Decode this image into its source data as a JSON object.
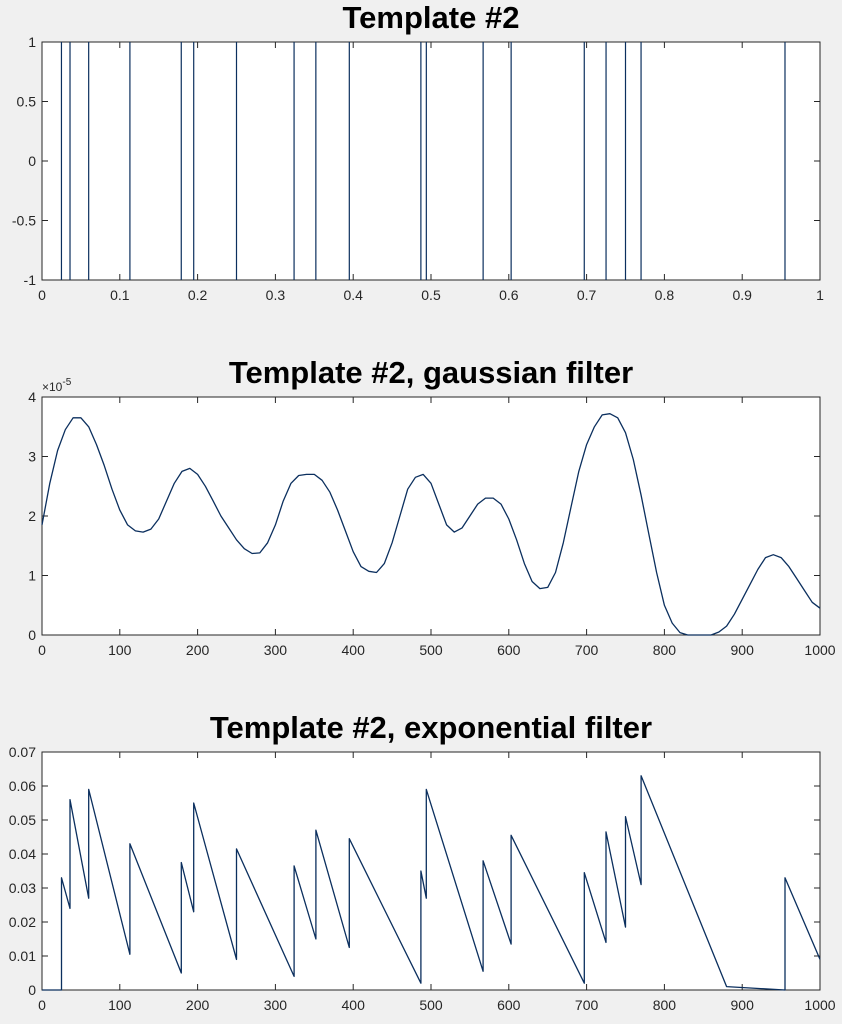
{
  "colors": {
    "figure_bg": "#f0f0f0",
    "axes_bg": "#ffffff",
    "axis": "#262626",
    "line": "#0b2f5e"
  },
  "chart_data": [
    {
      "type": "line",
      "title": "Template #2",
      "xlabel": "",
      "ylabel": "",
      "xlim": [
        0,
        1
      ],
      "ylim": [
        -1,
        1
      ],
      "xticks": [
        0,
        0.1,
        0.2,
        0.3,
        0.4,
        0.5,
        0.6,
        0.7,
        0.8,
        0.9,
        1
      ],
      "xtick_labels": [
        "0",
        "0.1",
        "0.2",
        "0.3",
        "0.4",
        "0.5",
        "0.6",
        "0.7",
        "0.8",
        "0.9",
        "1"
      ],
      "yticks": [
        -1,
        -0.5,
        0,
        0.5,
        1
      ],
      "ytick_labels": [
        "-1",
        "-0.5",
        "0",
        "0.5",
        "1"
      ],
      "grid": false,
      "spike_positions": [
        0.025,
        0.036,
        0.06,
        0.113,
        0.179,
        0.195,
        0.25,
        0.324,
        0.352,
        0.395,
        0.487,
        0.494,
        0.567,
        0.603,
        0.697,
        0.725,
        0.75,
        0.77,
        0.955
      ]
    },
    {
      "type": "line",
      "title": "Template #2, gaussian filter",
      "xlabel": "",
      "ylabel": "",
      "xlim": [
        0,
        1000
      ],
      "ylim": [
        0,
        4
      ],
      "y_exponent": "-5",
      "y_exponent_base": "×10",
      "xticks": [
        0,
        100,
        200,
        300,
        400,
        500,
        600,
        700,
        800,
        900,
        1000
      ],
      "xtick_labels": [
        "0",
        "100",
        "200",
        "300",
        "400",
        "500",
        "600",
        "700",
        "800",
        "900",
        "1000"
      ],
      "yticks": [
        0,
        1,
        2,
        3,
        4
      ],
      "ytick_labels": [
        "0",
        "1",
        "2",
        "3",
        "4"
      ],
      "grid": false,
      "x": [
        0,
        10,
        20,
        30,
        40,
        50,
        60,
        70,
        80,
        90,
        100,
        110,
        120,
        130,
        140,
        150,
        160,
        170,
        180,
        190,
        200,
        210,
        220,
        230,
        240,
        250,
        260,
        270,
        280,
        290,
        300,
        310,
        320,
        330,
        340,
        350,
        360,
        370,
        380,
        390,
        400,
        410,
        420,
        430,
        440,
        450,
        460,
        470,
        480,
        490,
        500,
        510,
        520,
        530,
        540,
        550,
        560,
        570,
        580,
        590,
        600,
        610,
        620,
        630,
        640,
        650,
        660,
        670,
        680,
        690,
        700,
        710,
        720,
        730,
        740,
        750,
        760,
        770,
        780,
        790,
        800,
        810,
        820,
        830,
        840,
        850,
        860,
        870,
        880,
        890,
        900,
        910,
        920,
        930,
        940,
        950,
        960,
        970,
        980,
        990,
        1000
      ],
      "y": [
        1.85,
        2.55,
        3.1,
        3.45,
        3.65,
        3.65,
        3.5,
        3.2,
        2.85,
        2.45,
        2.1,
        1.85,
        1.75,
        1.73,
        1.78,
        1.95,
        2.25,
        2.55,
        2.75,
        2.8,
        2.7,
        2.5,
        2.25,
        2.0,
        1.8,
        1.6,
        1.45,
        1.37,
        1.38,
        1.55,
        1.85,
        2.25,
        2.55,
        2.68,
        2.7,
        2.7,
        2.6,
        2.4,
        2.1,
        1.75,
        1.4,
        1.15,
        1.07,
        1.05,
        1.2,
        1.55,
        2.0,
        2.45,
        2.65,
        2.7,
        2.55,
        2.2,
        1.85,
        1.73,
        1.8,
        2.0,
        2.2,
        2.3,
        2.3,
        2.2,
        1.95,
        1.6,
        1.2,
        0.9,
        0.78,
        0.8,
        1.05,
        1.55,
        2.15,
        2.75,
        3.2,
        3.5,
        3.7,
        3.72,
        3.65,
        3.4,
        2.95,
        2.35,
        1.7,
        1.05,
        0.5,
        0.2,
        0.04,
        0.0,
        0.0,
        0.0,
        0.0,
        0.05,
        0.15,
        0.35,
        0.6,
        0.85,
        1.1,
        1.3,
        1.35,
        1.3,
        1.15,
        0.95,
        0.75,
        0.55,
        0.45
      ]
    },
    {
      "type": "line",
      "title": "Template #2, exponential filter",
      "xlabel": "",
      "ylabel": "",
      "xlim": [
        0,
        1000
      ],
      "ylim": [
        0,
        0.07
      ],
      "xticks": [
        0,
        100,
        200,
        300,
        400,
        500,
        600,
        700,
        800,
        900,
        1000
      ],
      "xtick_labels": [
        "0",
        "100",
        "200",
        "300",
        "400",
        "500",
        "600",
        "700",
        "800",
        "900",
        "1000"
      ],
      "yticks": [
        0,
        0.01,
        0.02,
        0.03,
        0.04,
        0.05,
        0.06,
        0.07
      ],
      "ytick_labels": [
        "0",
        "0.01",
        "0.02",
        "0.03",
        "0.04",
        "0.05",
        "0.06",
        "0.07"
      ],
      "grid": false,
      "x": [
        0,
        25,
        25,
        36,
        36,
        60,
        60,
        113,
        113,
        179,
        179,
        195,
        195,
        250,
        250,
        324,
        324,
        352,
        352,
        395,
        395,
        487,
        487,
        494,
        494,
        567,
        567,
        603,
        603,
        697,
        697,
        725,
        725,
        750,
        750,
        770,
        770,
        880,
        955,
        955,
        1000
      ],
      "y": [
        0,
        0,
        0.033,
        0.024,
        0.056,
        0.027,
        0.059,
        0.0105,
        0.043,
        0.005,
        0.0375,
        0.023,
        0.055,
        0.009,
        0.0415,
        0.004,
        0.0365,
        0.015,
        0.047,
        0.0125,
        0.0445,
        0.002,
        0.035,
        0.027,
        0.059,
        0.0055,
        0.038,
        0.0135,
        0.0455,
        0.002,
        0.0345,
        0.014,
        0.0465,
        0.0185,
        0.051,
        0.031,
        0.063,
        0.001,
        0.0,
        0.033,
        0.009
      ]
    }
  ]
}
